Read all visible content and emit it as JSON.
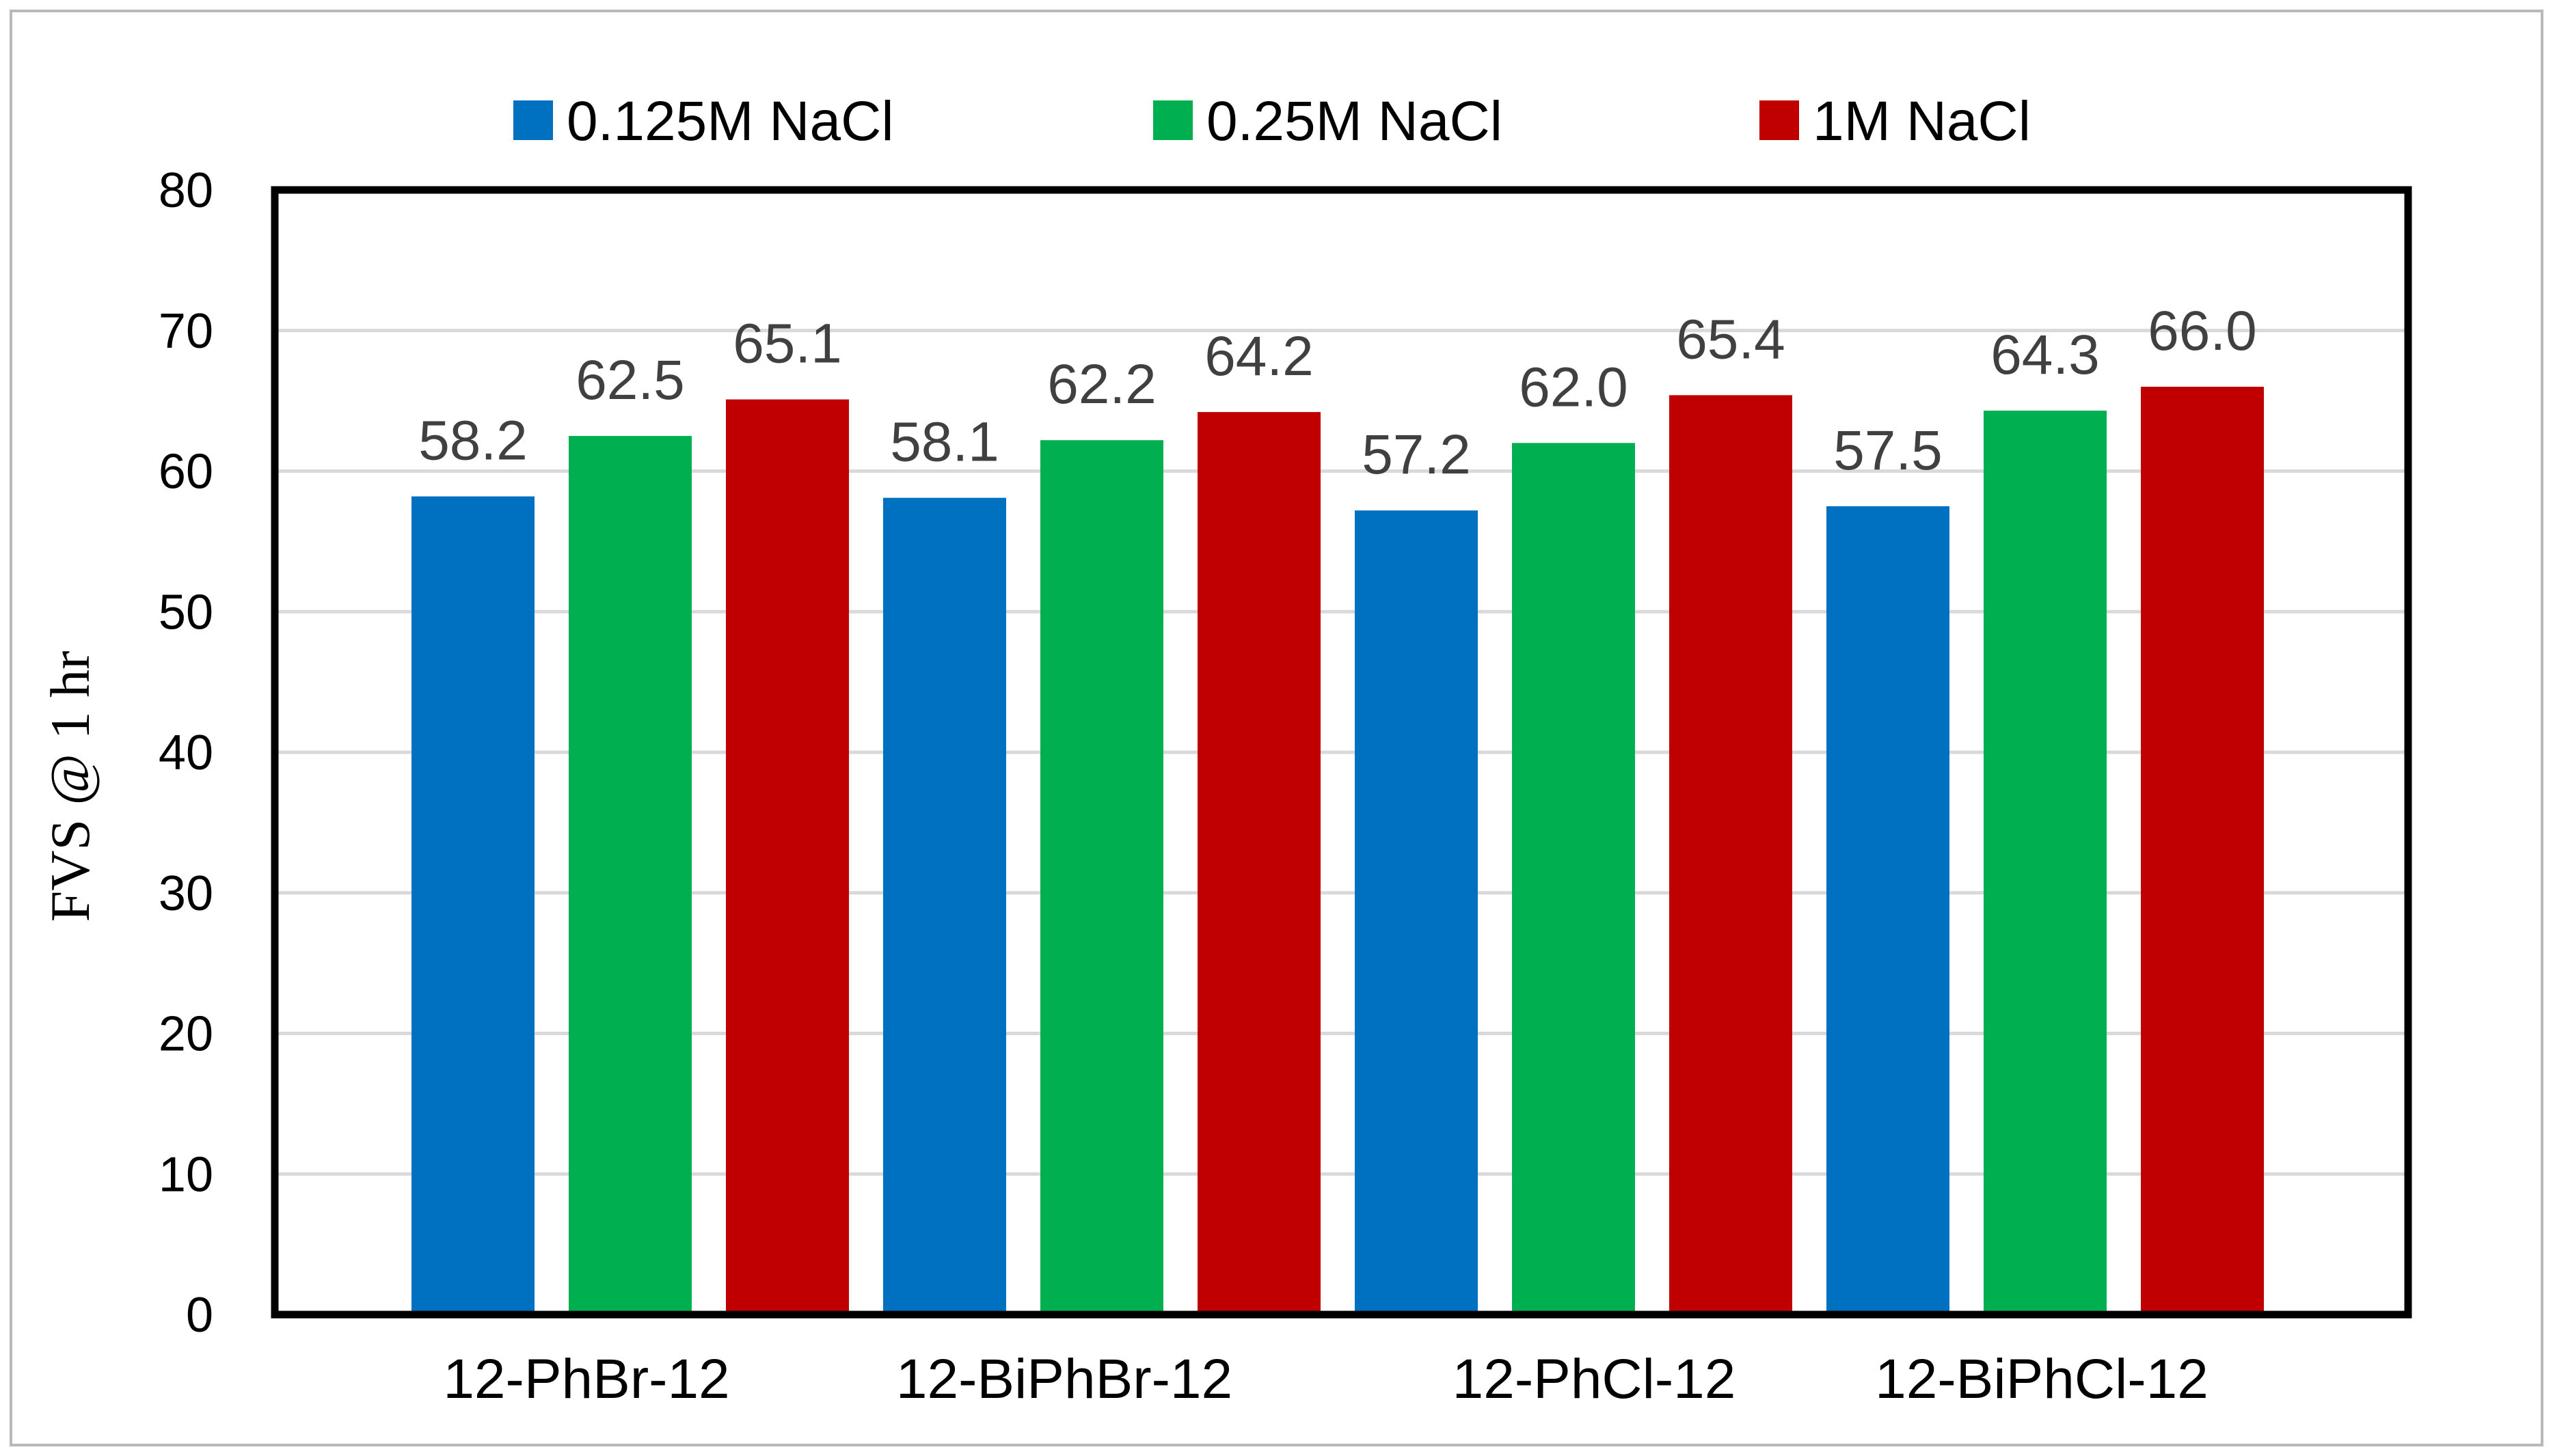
{
  "chart_data": {
    "type": "bar",
    "title": "",
    "xlabel": "",
    "ylabel": "FVS @ 1 hr",
    "ylim": [
      0,
      80
    ],
    "yticks": [
      0,
      10,
      20,
      30,
      40,
      50,
      60,
      70,
      80
    ],
    "grid": true,
    "legend_position": "top",
    "categories": [
      "12-PhBr-12",
      "12-BiPhBr-12",
      "12-PhCl-12",
      "12-BiPhCl-12"
    ],
    "series": [
      {
        "name": "0.125M NaCl",
        "color": "#0070c0",
        "values": [
          58.2,
          58.1,
          57.2,
          57.5
        ]
      },
      {
        "name": "0.25M NaCl",
        "color": "#00b050",
        "values": [
          62.5,
          62.2,
          62.0,
          64.3
        ]
      },
      {
        "name": "1M NaCl",
        "color": "#c00000",
        "values": [
          65.1,
          64.2,
          65.4,
          66.0
        ]
      }
    ]
  }
}
